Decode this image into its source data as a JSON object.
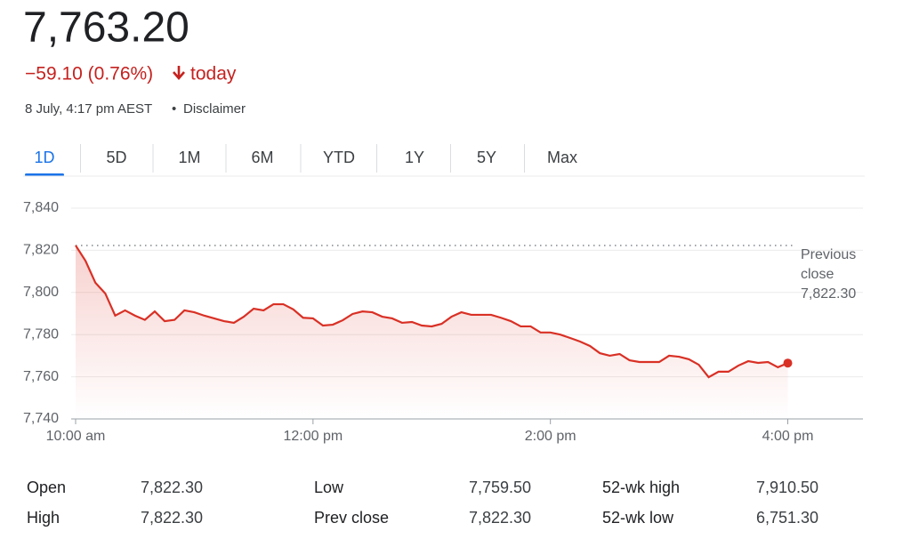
{
  "header": {
    "price": "7,763.20",
    "change": "−59.10 (0.76%)",
    "change_suffix": "today",
    "timestamp": "8 July, 4:17 pm AEST",
    "separator": "•",
    "disclaimer": "Disclaimer"
  },
  "tabs": {
    "items": [
      "1D",
      "5D",
      "1M",
      "6M",
      "YTD",
      "1Y",
      "5Y",
      "Max"
    ],
    "active": 0
  },
  "chart_data": {
    "type": "line",
    "x": [
      600,
      605,
      610,
      615,
      620,
      625,
      630,
      635,
      640,
      645,
      650,
      655,
      660,
      665,
      670,
      675,
      680,
      685,
      690,
      695,
      700,
      705,
      710,
      715,
      720,
      725,
      730,
      735,
      740,
      745,
      750,
      755,
      760,
      765,
      770,
      775,
      780,
      785,
      790,
      795,
      800,
      805,
      810,
      815,
      820,
      825,
      830,
      835,
      840,
      845,
      850,
      855,
      860,
      865,
      870,
      875,
      880,
      885,
      890,
      895,
      900,
      905,
      910,
      915,
      920,
      925,
      930,
      935,
      940,
      945,
      950,
      955,
      960
    ],
    "series": [
      {
        "name": "Price",
        "color": "#d93025",
        "values": [
          7822.3,
          7815,
          7804.6,
          7799.5,
          7789,
          7791.5,
          7789,
          7787,
          7791,
          7786.4,
          7787,
          7791.5,
          7790.6,
          7789,
          7787.7,
          7786.4,
          7785.6,
          7788.5,
          7792.3,
          7791.5,
          7794.4,
          7794.4,
          7792,
          7788,
          7787.7,
          7784.3,
          7784.7,
          7786.8,
          7789.8,
          7791,
          7790.6,
          7788.5,
          7787.7,
          7785.6,
          7786,
          7784.3,
          7783.9,
          7785.1,
          7788.5,
          7790.6,
          7789.4,
          7789.4,
          7789.4,
          7788,
          7786.4,
          7783.9,
          7783.9,
          7781,
          7781,
          7780,
          7778.4,
          7776.7,
          7774.6,
          7771.2,
          7770,
          7770.8,
          7767.8,
          7767,
          7767,
          7767,
          7770,
          7769.5,
          7768.3,
          7765.7,
          7759.8,
          7762.4,
          7762.4,
          7765.3,
          7767.4,
          7766.6,
          7767,
          7764.5,
          7766.5
        ]
      }
    ],
    "xlim": [
      600,
      998
    ],
    "xticks": [
      {
        "value": 600,
        "label": "10:00 am"
      },
      {
        "value": 720,
        "label": "12:00 pm"
      },
      {
        "value": 840,
        "label": "2:00 pm"
      },
      {
        "value": 960,
        "label": "4:00 pm"
      }
    ],
    "ylim": [
      7740,
      7840
    ],
    "yticks": [
      {
        "value": 7740,
        "label": "7,740"
      },
      {
        "value": 7760,
        "label": "7,760"
      },
      {
        "value": 7780,
        "label": "7,780"
      },
      {
        "value": 7800,
        "label": "7,800"
      },
      {
        "value": 7820,
        "label": "7,820"
      },
      {
        "value": 7840,
        "label": "7,840"
      }
    ],
    "grid": true,
    "previous_close": {
      "text": "Previous close",
      "value": 7822.3,
      "label": "7,822.30"
    }
  },
  "stats": {
    "rows": [
      [
        [
          "Open",
          "7,822.30"
        ],
        [
          "Low",
          "7,759.50"
        ],
        [
          "52-wk high",
          "7,910.50"
        ]
      ],
      [
        [
          "High",
          "7,822.30"
        ],
        [
          "Prev close",
          "7,822.30"
        ],
        [
          "52-wk low",
          "6,751.30"
        ]
      ]
    ]
  }
}
